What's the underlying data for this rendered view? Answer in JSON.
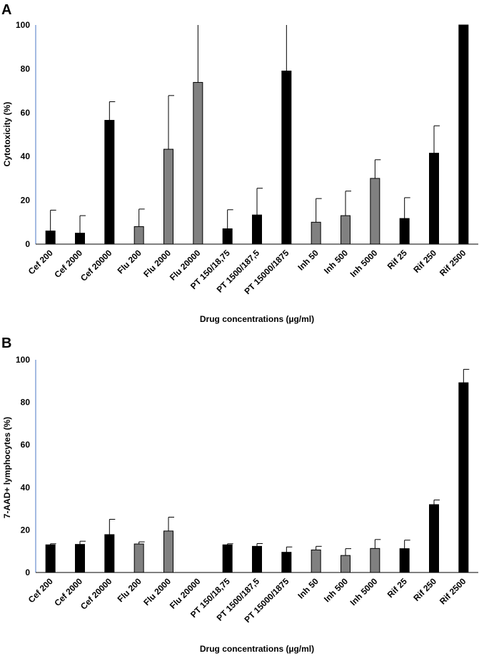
{
  "chart_data": [
    {
      "type": "bar",
      "panel": "A",
      "title": "",
      "xlabel": "Drug concentrations (µg/ml)",
      "ylabel": "Cytotoxicity (%)",
      "ylim": [
        0,
        100
      ],
      "yticks": [
        "0",
        "20",
        "40",
        "60",
        "80",
        "100"
      ],
      "categories": [
        "Cef 200",
        "Cef 2000",
        "Cef 20000",
        "Flu 200",
        "Flu 2000",
        "Flu 20000",
        "PT 150/18,75",
        "PT 1500/187,5",
        "PT 15000/1875",
        "Inh 50",
        "Inh 500",
        "Inh 5000",
        "Rif 25",
        "Rif 250",
        "Rif 2500"
      ],
      "values": [
        6,
        5,
        56.5,
        8,
        43.3,
        73.8,
        7,
        13.3,
        79,
        10,
        13,
        30,
        11.7,
        41.5,
        100
      ],
      "errors": [
        9.5,
        8,
        8.5,
        8,
        24.5,
        30,
        8.7,
        12.2,
        25,
        10.8,
        11.2,
        8.5,
        9.5,
        12.5,
        0
      ],
      "colors": [
        "#000000",
        "#000000",
        "#000000",
        "#808080",
        "#808080",
        "#808080",
        "#000000",
        "#000000",
        "#000000",
        "#808080",
        "#808080",
        "#808080",
        "#000000",
        "#000000",
        "#000000"
      ]
    },
    {
      "type": "bar",
      "panel": "B",
      "title": "",
      "xlabel": "Drug concentrations (µg/ml)",
      "ylabel": "7-AAD+ lymphocytes (%)",
      "ylim": [
        0,
        100
      ],
      "yticks": [
        "0",
        "20",
        "40",
        "60",
        "80",
        "100"
      ],
      "categories": [
        "Cef 200",
        "Cef 2000",
        "Cef 20000",
        "Flu 200",
        "Flu 2000",
        "Flu 20000",
        "PT 150/18,75",
        "PT 1500/187,5",
        "PT 15000/1875",
        "Inh 50",
        "Inh 500",
        "Inh 5000",
        "Rif 25",
        "Rif 250",
        "Rif 2500"
      ],
      "values": [
        13,
        13.2,
        17.8,
        13.4,
        19.5,
        null,
        13,
        12.3,
        9.5,
        10.6,
        8,
        11.3,
        11.2,
        31.9,
        89.2
      ],
      "errors": [
        0.5,
        1.5,
        7.2,
        1,
        6.5,
        null,
        0.5,
        1.3,
        2.5,
        1.7,
        3.2,
        4.2,
        4,
        2.2,
        6.3
      ],
      "colors": [
        "#000000",
        "#000000",
        "#000000",
        "#808080",
        "#808080",
        "#808080",
        "#000000",
        "#000000",
        "#000000",
        "#808080",
        "#808080",
        "#808080",
        "#000000",
        "#000000",
        "#000000"
      ]
    }
  ]
}
